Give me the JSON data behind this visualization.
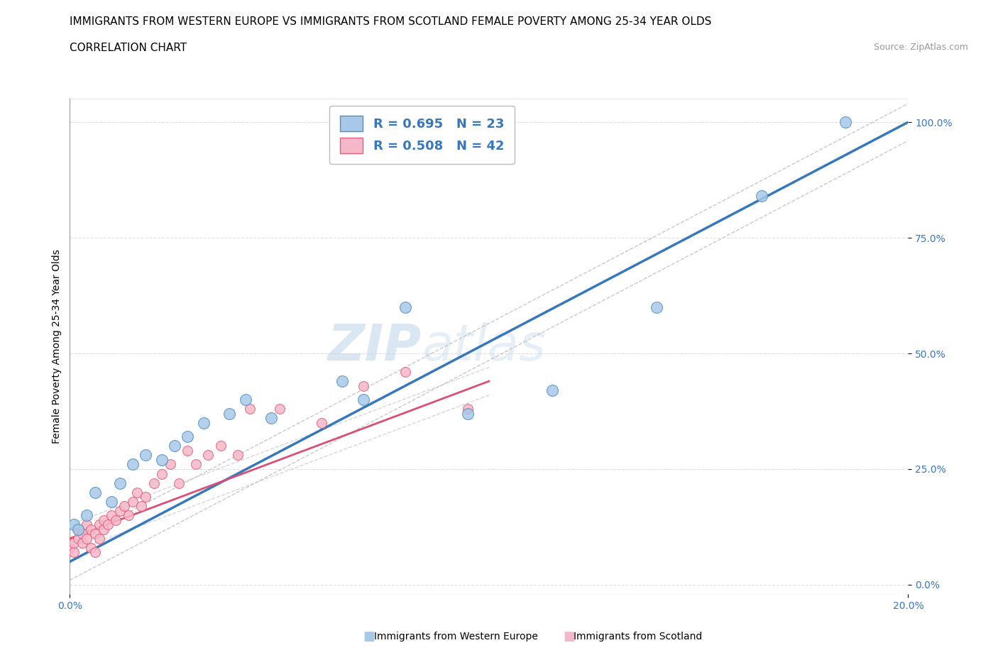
{
  "title_line1": "IMMIGRANTS FROM WESTERN EUROPE VS IMMIGRANTS FROM SCOTLAND FEMALE POVERTY AMONG 25-34 YEAR OLDS",
  "title_line2": "CORRELATION CHART",
  "source_text": "Source: ZipAtlas.com",
  "ylabel": "Female Poverty Among 25-34 Year Olds",
  "watermark_part1": "ZIP",
  "watermark_part2": "atlas",
  "xlim": [
    0.0,
    0.2
  ],
  "ylim": [
    -0.02,
    1.05
  ],
  "yticks": [
    0.0,
    0.25,
    0.5,
    0.75,
    1.0
  ],
  "ytick_labels": [
    "0.0%",
    "25.0%",
    "50.0%",
    "75.0%",
    "100.0%"
  ],
  "xtick_labels": [
    "0.0%",
    "20.0%"
  ],
  "grid_color": "#e0e0e0",
  "blue_color": "#a8c8e8",
  "pink_color": "#f5b8c8",
  "blue_edge_color": "#5090c0",
  "pink_edge_color": "#e06080",
  "blue_line_color": "#3878b8",
  "pink_line_color": "#d85075",
  "conf_color": "#d0d8e0",
  "R_blue": 0.695,
  "N_blue": 23,
  "R_pink": 0.508,
  "N_pink": 42,
  "blue_scatter_x": [
    0.001,
    0.002,
    0.004,
    0.006,
    0.01,
    0.012,
    0.015,
    0.018,
    0.022,
    0.025,
    0.028,
    0.032,
    0.038,
    0.042,
    0.048,
    0.065,
    0.07,
    0.08,
    0.095,
    0.115,
    0.14,
    0.165,
    0.185
  ],
  "blue_scatter_y": [
    0.13,
    0.12,
    0.15,
    0.2,
    0.18,
    0.22,
    0.26,
    0.28,
    0.27,
    0.3,
    0.32,
    0.35,
    0.37,
    0.4,
    0.36,
    0.44,
    0.4,
    0.6,
    0.37,
    0.42,
    0.6,
    0.84,
    1.0
  ],
  "pink_scatter_x": [
    0.0,
    0.001,
    0.001,
    0.002,
    0.002,
    0.003,
    0.003,
    0.004,
    0.004,
    0.005,
    0.005,
    0.006,
    0.006,
    0.007,
    0.007,
    0.008,
    0.008,
    0.009,
    0.01,
    0.011,
    0.012,
    0.013,
    0.014,
    0.015,
    0.016,
    0.017,
    0.018,
    0.02,
    0.022,
    0.024,
    0.026,
    0.028,
    0.03,
    0.033,
    0.036,
    0.04,
    0.043,
    0.05,
    0.06,
    0.07,
    0.08,
    0.095
  ],
  "pink_scatter_y": [
    0.08,
    0.07,
    0.09,
    0.1,
    0.12,
    0.11,
    0.09,
    0.1,
    0.13,
    0.08,
    0.12,
    0.07,
    0.11,
    0.1,
    0.13,
    0.12,
    0.14,
    0.13,
    0.15,
    0.14,
    0.16,
    0.17,
    0.15,
    0.18,
    0.2,
    0.17,
    0.19,
    0.22,
    0.24,
    0.26,
    0.22,
    0.29,
    0.26,
    0.28,
    0.3,
    0.28,
    0.38,
    0.38,
    0.35,
    0.43,
    0.46,
    0.38
  ],
  "blue_line_x0": 0.0,
  "blue_line_y0": 0.05,
  "blue_line_x1": 0.2,
  "blue_line_y1": 1.0,
  "pink_line_x0": 0.0,
  "pink_line_y0": 0.1,
  "pink_line_x1": 0.1,
  "pink_line_y1": 0.44,
  "legend_label_blue": "Immigrants from Western Europe",
  "legend_label_pink": "Immigrants from Scotland",
  "title_fontsize": 11,
  "axis_label_fontsize": 10,
  "tick_fontsize": 10,
  "legend_fontsize": 13
}
